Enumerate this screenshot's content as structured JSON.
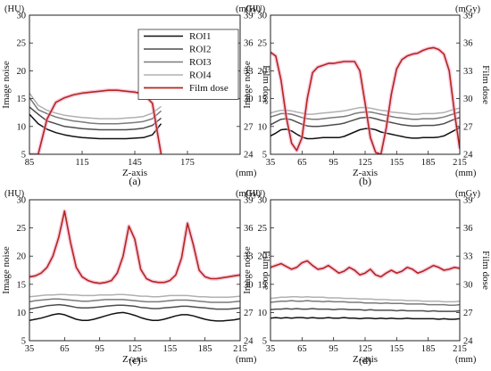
{
  "legend": {
    "items": [
      {
        "label": "ROI1",
        "color": "#111111"
      },
      {
        "label": "ROI2",
        "color": "#4d4d4d"
      },
      {
        "label": "ROI3",
        "color": "#7a7a7a"
      },
      {
        "label": "ROI4",
        "color": "#b0b0b0"
      },
      {
        "label": "Film dose",
        "color": "#b3261e"
      }
    ],
    "placement": "top-right of panel (a)"
  },
  "chart_data": [
    {
      "type": "line",
      "caption": "(a)",
      "xlabel": "Z-axis",
      "xunit": "(mm)",
      "ylabel": "Image noise",
      "yunit": "(HU)",
      "y2label": "Film dose",
      "y2unit": "(mGy)",
      "xlim": [
        85,
        205
      ],
      "xticks": [
        85,
        115,
        145,
        175
      ],
      "ylim": [
        5,
        30
      ],
      "yticks": [
        5,
        10,
        15,
        20,
        25,
        30
      ],
      "y2lim": [
        24,
        39
      ],
      "y2ticks": [
        24,
        27,
        30,
        33,
        36,
        39
      ],
      "grid": false,
      "x": [
        85,
        90,
        95,
        100,
        105,
        110,
        115,
        120,
        125,
        130,
        135,
        140,
        145,
        150,
        155,
        160
      ],
      "series": [
        {
          "name": "ROI1",
          "axis": "left",
          "values": [
            12.2,
            10.5,
            9.5,
            8.9,
            8.5,
            8.2,
            8.0,
            7.9,
            7.8,
            7.8,
            7.8,
            7.8,
            7.9,
            8.0,
            8.5,
            10.5
          ]
        },
        {
          "name": "ROI2",
          "axis": "left",
          "values": [
            13.5,
            12.2,
            11.0,
            10.5,
            10.0,
            9.8,
            9.6,
            9.5,
            9.4,
            9.4,
            9.4,
            9.4,
            9.5,
            9.7,
            10.2,
            11.5
          ]
        },
        {
          "name": "ROI3",
          "axis": "left",
          "values": [
            15.2,
            13.0,
            12.3,
            11.7,
            11.3,
            11.0,
            10.8,
            10.6,
            10.5,
            10.5,
            10.5,
            10.6,
            10.7,
            10.9,
            11.4,
            12.8
          ]
        },
        {
          "name": "ROI4",
          "axis": "left",
          "values": [
            16.0,
            13.8,
            12.9,
            12.4,
            12.0,
            11.8,
            11.6,
            11.5,
            11.4,
            11.4,
            11.4,
            11.5,
            11.6,
            11.8,
            12.4,
            13.6
          ]
        },
        {
          "name": "Film dose",
          "axis": "right",
          "values": [
            24.0,
            24.0,
            27.8,
            29.6,
            30.1,
            30.4,
            30.6,
            30.7,
            30.8,
            30.9,
            30.9,
            30.8,
            30.7,
            30.5,
            29.5,
            24.0
          ]
        }
      ]
    },
    {
      "type": "line",
      "caption": "(b)",
      "xlabel": "Z-axis",
      "xunit": "(mm)",
      "ylabel": "Image noise",
      "yunit": "(HU)",
      "y2label": "Film dose",
      "y2unit": "(mGy)",
      "xlim": [
        35,
        215
      ],
      "xticks": [
        35,
        65,
        95,
        125,
        155,
        185,
        215
      ],
      "ylim": [
        5,
        30
      ],
      "yticks": [
        5,
        10,
        15,
        20,
        25,
        30
      ],
      "y2lim": [
        24,
        39
      ],
      "y2ticks": [
        24,
        27,
        30,
        33,
        36,
        39
      ],
      "grid": false,
      "x": [
        35,
        40,
        45,
        50,
        55,
        60,
        65,
        70,
        75,
        80,
        85,
        90,
        95,
        100,
        105,
        110,
        115,
        120,
        125,
        130,
        135,
        140,
        145,
        150,
        155,
        160,
        165,
        170,
        175,
        180,
        185,
        190,
        195,
        200,
        205,
        210,
        215
      ],
      "series": [
        {
          "name": "ROI1",
          "axis": "left",
          "values": [
            8.3,
            8.8,
            9.4,
            9.5,
            9.2,
            8.6,
            8.1,
            7.8,
            7.8,
            7.9,
            8.0,
            8.0,
            8.0,
            8.0,
            8.2,
            8.6,
            9.0,
            9.4,
            9.6,
            9.6,
            9.4,
            9.0,
            8.8,
            8.6,
            8.4,
            8.2,
            8.0,
            7.9,
            7.9,
            8.0,
            8.0,
            8.0,
            8.1,
            8.3,
            8.8,
            9.3,
            9.8
          ]
        },
        {
          "name": "ROI2",
          "axis": "left",
          "values": [
            10.3,
            10.8,
            11.3,
            11.4,
            11.2,
            10.8,
            10.4,
            10.1,
            10.0,
            10.0,
            10.1,
            10.2,
            10.3,
            10.4,
            10.6,
            10.9,
            11.2,
            11.5,
            11.6,
            11.6,
            11.4,
            11.1,
            10.9,
            10.7,
            10.5,
            10.3,
            10.2,
            10.1,
            10.1,
            10.2,
            10.2,
            10.2,
            10.3,
            10.5,
            10.9,
            11.3,
            11.6
          ]
        },
        {
          "name": "ROI3",
          "axis": "left",
          "values": [
            11.7,
            12.0,
            12.3,
            12.3,
            12.2,
            11.9,
            11.6,
            11.4,
            11.3,
            11.3,
            11.4,
            11.5,
            11.6,
            11.7,
            11.8,
            12.0,
            12.3,
            12.5,
            12.6,
            12.6,
            12.4,
            12.2,
            12.0,
            11.8,
            11.6,
            11.5,
            11.4,
            11.3,
            11.3,
            11.4,
            11.4,
            11.4,
            11.5,
            11.7,
            12.0,
            12.3,
            12.6
          ]
        },
        {
          "name": "ROI4",
          "axis": "left",
          "values": [
            12.4,
            12.7,
            12.9,
            12.9,
            12.8,
            12.6,
            12.4,
            12.2,
            12.2,
            12.3,
            12.4,
            12.5,
            12.6,
            12.7,
            12.8,
            13.0,
            13.2,
            13.4,
            13.4,
            13.3,
            13.1,
            12.9,
            12.8,
            12.6,
            12.5,
            12.4,
            12.3,
            12.2,
            12.2,
            12.3,
            12.3,
            12.3,
            12.4,
            12.5,
            12.8,
            13.1,
            13.3
          ]
        },
        {
          "name": "Film dose",
          "axis": "right",
          "values": [
            35.0,
            34.6,
            32.0,
            28.0,
            25.2,
            24.4,
            25.8,
            30.0,
            32.8,
            33.4,
            33.6,
            33.8,
            33.8,
            33.9,
            34.0,
            34.0,
            34.0,
            33.0,
            29.5,
            25.8,
            24.2,
            24.0,
            26.8,
            30.5,
            33.2,
            34.2,
            34.6,
            34.8,
            34.9,
            35.2,
            35.4,
            35.5,
            35.3,
            34.8,
            33.0,
            28.5,
            24.6
          ]
        }
      ]
    },
    {
      "type": "line",
      "caption": "(c)",
      "xlabel": "Z-axis",
      "xunit": "(mm)",
      "ylabel": "Image noise",
      "yunit": "(HU)",
      "y2label": "Film dose",
      "y2unit": "(mGy)",
      "xlim": [
        35,
        215
      ],
      "xticks": [
        35,
        65,
        95,
        125,
        155,
        185,
        215
      ],
      "ylim": [
        5,
        30
      ],
      "yticks": [
        5,
        10,
        15,
        20,
        25,
        30
      ],
      "y2lim": [
        24,
        39
      ],
      "y2ticks": [
        24,
        27,
        30,
        33,
        36,
        39
      ],
      "grid": false,
      "x": [
        35,
        40,
        45,
        50,
        55,
        60,
        65,
        70,
        75,
        80,
        85,
        90,
        95,
        100,
        105,
        110,
        115,
        120,
        125,
        130,
        135,
        140,
        145,
        150,
        155,
        160,
        165,
        170,
        175,
        180,
        185,
        190,
        195,
        200,
        205,
        210,
        215
      ],
      "series": [
        {
          "name": "ROI1",
          "axis": "left",
          "values": [
            8.6,
            8.8,
            9.0,
            9.3,
            9.6,
            9.8,
            9.6,
            9.2,
            8.8,
            8.6,
            8.6,
            8.8,
            9.1,
            9.4,
            9.7,
            9.9,
            10.0,
            9.8,
            9.5,
            9.1,
            8.8,
            8.6,
            8.6,
            8.8,
            9.1,
            9.4,
            9.6,
            9.6,
            9.4,
            9.1,
            8.8,
            8.6,
            8.5,
            8.5,
            8.6,
            8.7,
            8.9
          ]
        },
        {
          "name": "ROI2",
          "axis": "left",
          "values": [
            10.6,
            10.8,
            11.0,
            11.2,
            11.3,
            11.4,
            11.3,
            11.1,
            10.9,
            10.8,
            10.8,
            10.9,
            11.0,
            11.1,
            11.2,
            11.3,
            11.3,
            11.2,
            11.1,
            10.9,
            10.8,
            10.7,
            10.7,
            10.8,
            10.9,
            11.0,
            11.1,
            11.1,
            11.0,
            10.9,
            10.8,
            10.7,
            10.6,
            10.6,
            10.6,
            10.7,
            10.8
          ]
        },
        {
          "name": "ROI3",
          "axis": "left",
          "values": [
            11.9,
            12.1,
            12.2,
            12.3,
            12.4,
            12.4,
            12.3,
            12.2,
            12.1,
            12.0,
            12.0,
            12.1,
            12.2,
            12.3,
            12.3,
            12.3,
            12.3,
            12.2,
            12.1,
            12.0,
            11.9,
            11.9,
            11.9,
            12.0,
            12.1,
            12.2,
            12.2,
            12.2,
            12.1,
            12.0,
            11.9,
            11.8,
            11.8,
            11.8,
            11.8,
            11.9,
            12.0
          ]
        },
        {
          "name": "ROI4",
          "axis": "left",
          "values": [
            12.8,
            12.9,
            13.0,
            13.1,
            13.1,
            13.2,
            13.2,
            13.1,
            13.1,
            13.0,
            13.0,
            13.0,
            13.1,
            13.1,
            13.1,
            13.2,
            13.2,
            13.1,
            13.0,
            12.9,
            12.9,
            12.8,
            12.8,
            12.9,
            13.0,
            13.0,
            13.0,
            13.0,
            12.9,
            12.8,
            12.8,
            12.7,
            12.7,
            12.7,
            12.7,
            12.8,
            12.9
          ]
        },
        {
          "name": "Film dose",
          "axis": "right",
          "values": [
            30.8,
            30.9,
            31.2,
            31.8,
            33.0,
            35.0,
            37.8,
            34.5,
            31.8,
            30.8,
            30.4,
            30.2,
            30.1,
            30.2,
            30.4,
            31.2,
            33.0,
            36.2,
            34.8,
            31.6,
            30.6,
            30.3,
            30.2,
            30.2,
            30.4,
            31.0,
            32.8,
            36.5,
            34.2,
            31.5,
            30.8,
            30.6,
            30.6,
            30.7,
            30.8,
            30.9,
            31.0
          ]
        }
      ]
    },
    {
      "type": "line",
      "caption": "(d)",
      "xlabel": "Z-axis",
      "xunit": "(mm)",
      "ylabel": "Image noise",
      "yunit": "(HU)",
      "y2label": "Film dose",
      "y2unit": "(mGy)",
      "xlim": [
        35,
        215
      ],
      "xticks": [
        35,
        65,
        95,
        125,
        155,
        185,
        215
      ],
      "ylim": [
        5,
        30
      ],
      "yticks": [
        5,
        10,
        15,
        20,
        25,
        30
      ],
      "y2lim": [
        24,
        39
      ],
      "y2ticks": [
        24,
        27,
        30,
        33,
        36,
        39
      ],
      "grid": false,
      "x": [
        35,
        40,
        45,
        50,
        55,
        60,
        65,
        70,
        75,
        80,
        85,
        90,
        95,
        100,
        105,
        110,
        115,
        120,
        125,
        130,
        135,
        140,
        145,
        150,
        155,
        160,
        165,
        170,
        175,
        180,
        185,
        190,
        195,
        200,
        205,
        210,
        215
      ],
      "series": [
        {
          "name": "ROI1",
          "axis": "left",
          "values": [
            9.0,
            9.1,
            9.0,
            9.1,
            9.0,
            9.1,
            9.1,
            9.0,
            9.1,
            9.0,
            9.0,
            9.1,
            9.0,
            9.0,
            9.1,
            9.0,
            9.0,
            8.9,
            9.0,
            9.0,
            8.9,
            9.0,
            8.9,
            9.0,
            8.9,
            8.9,
            9.0,
            8.9,
            8.9,
            8.9,
            8.9,
            8.9,
            8.8,
            8.9,
            8.8,
            8.8,
            8.9
          ]
        },
        {
          "name": "ROI2",
          "axis": "left",
          "values": [
            10.5,
            10.6,
            10.6,
            10.7,
            10.6,
            10.7,
            10.6,
            10.6,
            10.7,
            10.6,
            10.6,
            10.6,
            10.5,
            10.6,
            10.6,
            10.5,
            10.5,
            10.5,
            10.4,
            10.5,
            10.4,
            10.4,
            10.4,
            10.4,
            10.3,
            10.4,
            10.3,
            10.3,
            10.3,
            10.3,
            10.2,
            10.3,
            10.2,
            10.2,
            10.2,
            10.2,
            10.3
          ]
        },
        {
          "name": "ROI3",
          "axis": "left",
          "values": [
            11.8,
            11.9,
            12.0,
            12.0,
            12.1,
            12.0,
            12.0,
            12.1,
            12.0,
            12.0,
            11.9,
            12.0,
            11.9,
            11.9,
            11.9,
            11.8,
            11.8,
            11.8,
            11.7,
            11.7,
            11.7,
            11.6,
            11.7,
            11.6,
            11.6,
            11.6,
            11.5,
            11.5,
            11.5,
            11.5,
            11.4,
            11.4,
            11.4,
            11.4,
            11.3,
            11.3,
            11.4
          ]
        },
        {
          "name": "ROI4",
          "axis": "left",
          "values": [
            12.5,
            12.6,
            12.7,
            12.7,
            12.8,
            12.8,
            12.7,
            12.8,
            12.7,
            12.7,
            12.7,
            12.6,
            12.6,
            12.6,
            12.5,
            12.5,
            12.5,
            12.4,
            12.4,
            12.4,
            12.3,
            12.3,
            12.3,
            12.2,
            12.2,
            12.2,
            12.1,
            12.1,
            12.1,
            12.0,
            12.0,
            12.0,
            12.0,
            11.9,
            11.9,
            11.9,
            12.0
          ]
        },
        {
          "name": "Film dose",
          "axis": "right",
          "values": [
            31.8,
            32.0,
            32.2,
            31.9,
            31.6,
            31.8,
            32.3,
            32.5,
            32.0,
            31.6,
            31.7,
            32.0,
            31.6,
            31.2,
            31.4,
            31.8,
            31.5,
            31.0,
            31.2,
            31.6,
            31.0,
            30.8,
            31.2,
            31.5,
            31.2,
            31.4,
            31.8,
            31.6,
            31.2,
            31.4,
            31.7,
            32.0,
            31.8,
            31.5,
            31.6,
            31.8,
            31.7
          ]
        }
      ]
    }
  ]
}
